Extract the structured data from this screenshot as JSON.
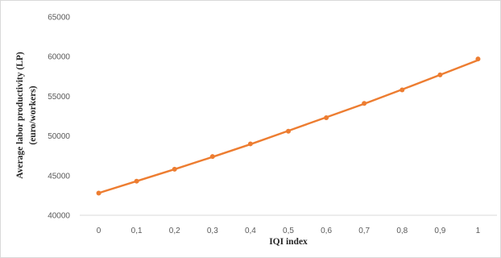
{
  "chart_data": {
    "type": "line",
    "title": "",
    "xlabel": "IQI index",
    "ylabel": "Average  labor productivity (LP)",
    "ylabel_line2": "(euro/workers)",
    "x": [
      0,
      0.1,
      0.2,
      0.3,
      0.4,
      0.5,
      0.6,
      0.7,
      0.8,
      0.9,
      1
    ],
    "x_tick_labels": [
      "0",
      "0,1",
      "0,2",
      "0,3",
      "0,4",
      "0,5",
      "0,6",
      "0,7",
      "0,8",
      "0,9",
      "1"
    ],
    "y_tick_labels": [
      "40000",
      "45000",
      "50000",
      "55000",
      "60000",
      "65000"
    ],
    "yticks": [
      40000,
      45000,
      50000,
      55000,
      60000,
      65000
    ],
    "ylim": [
      40000,
      65000
    ],
    "grid": false,
    "legend": "none",
    "series": [
      {
        "points": [
          42800,
          44300,
          45800,
          47400,
          49000,
          50600,
          52300,
          54100,
          55800,
          57700,
          59700
        ],
        "line": [
          42800,
          44300,
          45800,
          47350,
          48950,
          50650,
          52350,
          54050,
          55850,
          57700,
          59550
        ],
        "color": "#ED7D31"
      }
    ]
  }
}
